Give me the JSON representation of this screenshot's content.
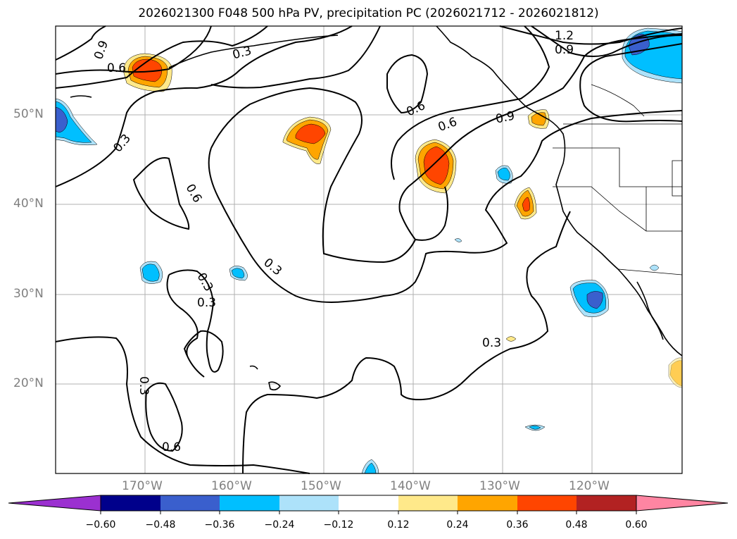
{
  "title": "2026021300 F048 500 hPa PV, precipitation PC (2026021712 - 2026021812)",
  "axes": {
    "lat_labels": [
      "50°N",
      "40°N",
      "30°N",
      "20°N"
    ],
    "lon_labels": [
      "170°W",
      "160°W",
      "150°W",
      "140°W",
      "130°W",
      "120°W"
    ]
  },
  "contour_labels": [
    "0.9",
    "0.6",
    "0.3",
    "0.3",
    "1.2",
    "0.9",
    "0.3",
    "0.6",
    "0.6",
    "0.9",
    "0.6",
    "0.3",
    "0.3",
    "0.3",
    "0.3",
    "0.6"
  ],
  "colorbar": {
    "ticks": [
      "−0.60",
      "−0.48",
      "−0.36",
      "−0.24",
      "−0.12",
      "0.12",
      "0.24",
      "0.36",
      "0.48",
      "0.60"
    ],
    "colors": [
      "#9b30d0",
      "#00008b",
      "#3a5fcd",
      "#00bfff",
      "#ade2fa",
      "#ffffff",
      "#ffe98a",
      "#ffa500",
      "#ff4500",
      "#b22222",
      "#ff85a2"
    ]
  },
  "anomaly_colors": {
    "pos1": "#ffe98a",
    "pos2": "#ffa500",
    "pos3": "#ff4500",
    "neg1": "#ade2fa",
    "neg2": "#00bfff",
    "neg3": "#3a5fcd"
  }
}
